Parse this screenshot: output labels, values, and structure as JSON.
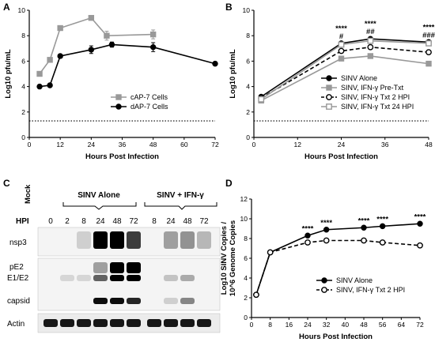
{
  "panels": {
    "A": "A",
    "B": "B",
    "C": "C",
    "D": "D"
  },
  "chart_data": [
    {
      "panel": "A",
      "type": "line",
      "xlabel": "Hours Post Infection",
      "ylabel": "Log10 pfu/mL",
      "xlim": [
        0,
        72
      ],
      "ylim": [
        0,
        10
      ],
      "xticks": [
        0,
        12,
        24,
        36,
        48,
        60,
        72
      ],
      "yticks": [
        0,
        2,
        4,
        6,
        8,
        10
      ],
      "reference_line": 1.3,
      "legend_position": "right",
      "series": [
        {
          "name": "cAP-7 Cells",
          "color": "#999999",
          "marker": "square",
          "x": [
            4,
            8,
            12,
            24,
            30,
            48
          ],
          "y": [
            5.0,
            6.1,
            8.6,
            9.4,
            8.0,
            8.1
          ],
          "err": [
            0.15,
            0.15,
            0.15,
            0.15,
            0.35,
            0.35
          ]
        },
        {
          "name": "dAP-7 Cells",
          "color": "#000000",
          "marker": "circle",
          "x": [
            4,
            8,
            12,
            24,
            32,
            48,
            72
          ],
          "y": [
            4.0,
            4.1,
            6.4,
            6.9,
            7.3,
            7.1,
            5.8
          ],
          "err": [
            0.1,
            0.1,
            0.15,
            0.3,
            0.2,
            0.35,
            0.1
          ]
        }
      ]
    },
    {
      "panel": "B",
      "type": "line",
      "xlabel": "Hours Post Infection",
      "ylabel": "Log10 pfu/mL",
      "xlim": [
        0,
        48
      ],
      "ylim": [
        0,
        10
      ],
      "xticks": [
        0,
        12,
        24,
        36,
        48
      ],
      "yticks": [
        0,
        2,
        4,
        6,
        8,
        10
      ],
      "reference_line": 1.3,
      "legend_position": "bottom-right",
      "annotations": [
        {
          "x": 24,
          "lines": [
            "****",
            "#"
          ]
        },
        {
          "x": 32,
          "lines": [
            "****",
            "##"
          ]
        },
        {
          "x": 48,
          "lines": [
            "****",
            "###"
          ]
        }
      ],
      "series": [
        {
          "name": "SINV Alone",
          "color": "#000000",
          "marker": "circle",
          "dash": "solid",
          "x": [
            2,
            24,
            32,
            48
          ],
          "y": [
            3.2,
            7.4,
            7.75,
            7.5
          ]
        },
        {
          "name": "SINV, IFN-γ Pre-Txt",
          "color": "#999999",
          "marker": "square",
          "dash": "solid",
          "x": [
            2,
            24,
            32,
            48
          ],
          "y": [
            2.9,
            6.2,
            6.4,
            5.8
          ]
        },
        {
          "name": "SINV, IFN-γ Txt 2 HPI",
          "color": "#000000",
          "marker": "open-circle",
          "dash": "dashed",
          "x": [
            2,
            24,
            32,
            48
          ],
          "y": [
            3.1,
            6.8,
            7.1,
            6.7
          ]
        },
        {
          "name": "SINV, IFN-γ Txt 24 HPI",
          "color": "#999999",
          "marker": "open-square",
          "dash": "solid",
          "x": [
            2,
            24,
            32,
            48
          ],
          "y": [
            3.0,
            7.3,
            7.6,
            7.4
          ]
        }
      ]
    },
    {
      "panel": "D",
      "type": "line",
      "xlabel": "Hours Post Infection",
      "ylabel": "Log10 SINV Copies /\n10^6 Genome Copies",
      "ylabel_lines": [
        "Log10 SINV Copies /",
        "10^6 Genome Copies"
      ],
      "xlim": [
        0,
        72
      ],
      "ylim": [
        0,
        12
      ],
      "xticks": [
        0,
        8,
        16,
        24,
        32,
        40,
        48,
        56,
        64,
        72
      ],
      "yticks": [
        0,
        2,
        4,
        6,
        8,
        10,
        12
      ],
      "legend_position": "bottom-right",
      "annotations": [
        {
          "x": 24,
          "text": "****"
        },
        {
          "x": 32,
          "text": "****"
        },
        {
          "x": 48,
          "text": "****"
        },
        {
          "x": 56,
          "text": "****"
        },
        {
          "x": 72,
          "text": "****"
        }
      ],
      "series": [
        {
          "name": "SINV Alone",
          "color": "#000000",
          "marker": "circle",
          "dash": "solid",
          "x": [
            2,
            8,
            24,
            32,
            48,
            56,
            72
          ],
          "y": [
            2.3,
            6.6,
            8.3,
            8.9,
            9.1,
            9.25,
            9.5
          ]
        },
        {
          "name": "SINV, IFN-γ Txt 2 HPI",
          "color": "#000000",
          "marker": "open-circle",
          "dash": "dashed",
          "x": [
            2,
            8,
            24,
            32,
            48,
            56,
            72
          ],
          "y": [
            2.3,
            6.6,
            7.6,
            7.8,
            7.8,
            7.6,
            7.3
          ]
        }
      ]
    }
  ],
  "blot": {
    "mock_label": "Mock",
    "group_alone": "SINV Alone",
    "group_ifn": "SINV + IFN-γ",
    "hpi_label": "HPI",
    "hpi": [
      "0",
      "2",
      "8",
      "24",
      "48",
      "72",
      "8",
      "24",
      "48",
      "72"
    ],
    "rows": {
      "nsp3": "nsp3",
      "pe2": "pE2",
      "e1e2": "E1/E2",
      "capsid": "capsid",
      "actin": "Actin"
    }
  }
}
